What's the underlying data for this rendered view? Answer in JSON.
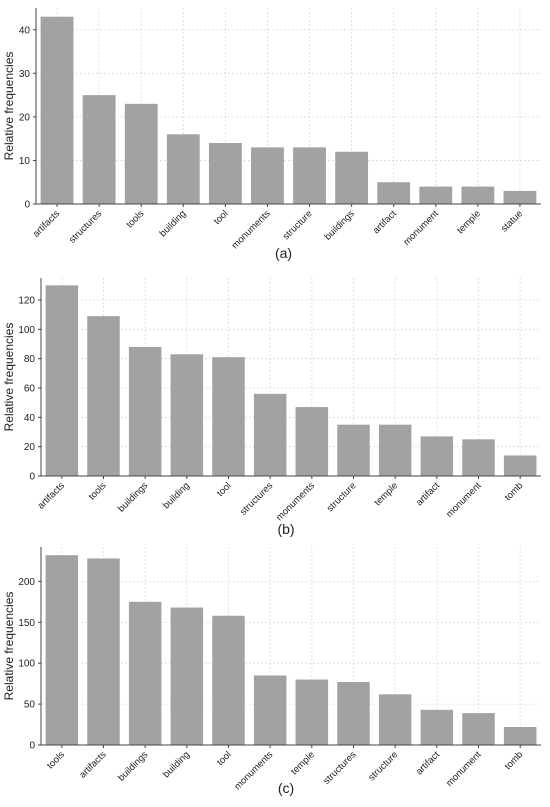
{
  "colors": {
    "bar": "#a2a2a2",
    "grid": "#d9d9d9",
    "axis": "#444444"
  },
  "chart_data": [
    {
      "type": "bar",
      "caption": "(a)",
      "ylabel": "Relative frequencies",
      "xlabel": "",
      "ylim": [
        0,
        45
      ],
      "yticks": [
        0,
        10,
        20,
        30,
        40
      ],
      "grid": true,
      "categories": [
        "artifacts",
        "structures",
        "tools",
        "building",
        "tool",
        "monuments",
        "structure",
        "buildings",
        "artifact",
        "monument",
        "temple",
        "statue"
      ],
      "values": [
        43,
        25,
        23,
        16,
        14,
        13,
        13,
        12,
        5,
        4,
        4,
        3
      ]
    },
    {
      "type": "bar",
      "caption": "(b)",
      "ylabel": "Relative frequencies",
      "xlabel": "",
      "ylim": [
        0,
        135
      ],
      "yticks": [
        0,
        20,
        40,
        60,
        80,
        100,
        120
      ],
      "grid": true,
      "categories": [
        "artifacts",
        "tools",
        "buildings",
        "building",
        "tool",
        "structures",
        "monuments",
        "structure",
        "temple",
        "artifact",
        "monument",
        "tomb"
      ],
      "values": [
        130,
        109,
        88,
        83,
        81,
        56,
        47,
        35,
        35,
        27,
        25,
        14
      ]
    },
    {
      "type": "bar",
      "caption": "(c)",
      "ylabel": "Relative frequencies",
      "xlabel": "",
      "ylim": [
        0,
        242
      ],
      "yticks": [
        0,
        50,
        100,
        150,
        200
      ],
      "grid": true,
      "categories": [
        "tools",
        "artifacts",
        "buildings",
        "building",
        "tool",
        "monuments",
        "temple",
        "structures",
        "structure",
        "artifact",
        "monument",
        "tomb"
      ],
      "values": [
        232,
        228,
        175,
        168,
        158,
        85,
        80,
        77,
        62,
        43,
        39,
        22
      ]
    }
  ]
}
